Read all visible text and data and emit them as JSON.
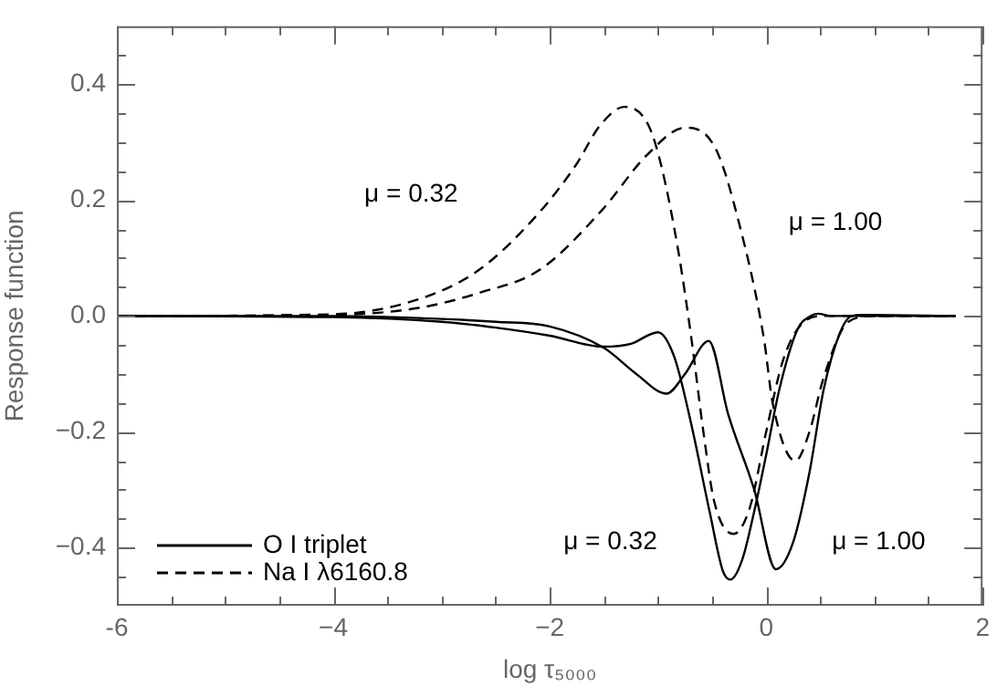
{
  "chart_data": {
    "type": "line",
    "xlabel": "log τ₅₀₀₀",
    "ylabel": "Response function",
    "xlim": [
      -6,
      2
    ],
    "ylim": [
      -0.5,
      0.5
    ],
    "xticks": [
      -6,
      {
        "value": -5.5,
        "label": null
      },
      {
        "value": -5,
        "label": null
      },
      {
        "value": -4.5,
        "label": null
      },
      {
        "value": -4,
        "label": "−4"
      },
      {
        "value": -3.5,
        "label": null
      },
      {
        "value": -3,
        "label": null
      },
      {
        "value": -2.5,
        "label": null
      },
      {
        "value": -2,
        "label": "−2"
      },
      {
        "value": -1.5,
        "label": null
      },
      {
        "value": -1,
        "label": null
      },
      {
        "value": -0.5,
        "label": null
      },
      0,
      {
        "value": 0.5,
        "label": null
      },
      {
        "value": 1,
        "label": null
      },
      {
        "value": 1.5,
        "label": null
      },
      2
    ],
    "yticks": [
      {
        "value": -0.45,
        "label": null
      },
      {
        "value": -0.4,
        "label": "−0.4"
      },
      {
        "value": -0.35,
        "label": null
      },
      {
        "value": -0.3,
        "label": null
      },
      {
        "value": -0.25,
        "label": null
      },
      {
        "value": -0.2,
        "label": "−0.2"
      },
      {
        "value": -0.15,
        "label": null
      },
      {
        "value": -0.1,
        "label": null
      },
      {
        "value": -0.05,
        "label": null
      },
      {
        "value": 0,
        "label": "0.0"
      },
      {
        "value": 0.05,
        "label": null
      },
      {
        "value": 0.1,
        "label": null
      },
      {
        "value": 0.15,
        "label": null
      },
      {
        "value": 0.2,
        "label": "0.2"
      },
      {
        "value": 0.25,
        "label": null
      },
      {
        "value": 0.3,
        "label": null
      },
      {
        "value": 0.35,
        "label": null
      },
      {
        "value": 0.4,
        "label": "0.4"
      },
      {
        "value": 0.45,
        "label": null
      }
    ],
    "grid": false,
    "legend": "bottom left",
    "marker": "none",
    "series": [
      {
        "name": "O I triplet",
        "color": "#000000",
        "line_style": "solid",
        "x": [
          -6,
          -4,
          -3,
          -2.5,
          -2,
          -1.5,
          -1.25,
          -1.0,
          -0.85,
          -0.7,
          -0.52,
          -0.4,
          -0.33,
          -0.22,
          -0.11,
          0,
          0.12,
          0.29,
          0.41,
          0.48,
          0.6,
          1.75
        ],
        "values": [
          0,
          -0.002,
          -0.01,
          -0.02,
          -0.034,
          -0.053,
          -0.048,
          -0.028,
          -0.07,
          -0.18,
          -0.34,
          -0.44,
          -0.455,
          -0.42,
          -0.337,
          -0.24,
          -0.128,
          -0.023,
          0,
          0.004,
          0,
          0
        ]
      },
      {
        "color": "#000000",
        "line_style": "solid",
        "x": [
          -6,
          -4,
          -3,
          -2.5,
          -2,
          -1.5,
          -1.2,
          -0.92,
          -0.75,
          -0.53,
          -0.35,
          -0.11,
          0.09,
          0.25,
          0.4,
          0.53,
          0.68,
          0.79,
          0.9,
          1.75
        ],
        "values": [
          0,
          0,
          -0.005,
          -0.01,
          -0.018,
          -0.055,
          -0.1,
          -0.134,
          -0.1,
          -0.043,
          -0.17,
          -0.3,
          -0.437,
          -0.39,
          -0.27,
          -0.128,
          -0.03,
          0,
          0.002,
          0
        ]
      },
      {
        "name": "Na I λ6160.8",
        "color": "#000000",
        "line_style": "dashed",
        "x": [
          -6,
          -4,
          -3.21,
          -2.65,
          -2.09,
          -1.76,
          -1.53,
          -1.31,
          -1.09,
          -0.97,
          -0.81,
          -0.69,
          -0.58,
          -0.48,
          -0.3,
          -0.15,
          0,
          0.15,
          0.3,
          0.5,
          0.7,
          1.75
        ],
        "values": [
          0,
          0.003,
          0.029,
          0.08,
          0.18,
          0.26,
          0.33,
          0.361,
          0.33,
          0.26,
          0.11,
          -0.04,
          -0.2,
          -0.32,
          -0.376,
          -0.33,
          -0.2,
          -0.08,
          -0.02,
          0,
          0,
          0
        ]
      },
      {
        "color": "#000000",
        "line_style": "dashed",
        "x": [
          -6,
          -4,
          -3.21,
          -2.65,
          -2.09,
          -1.53,
          -1.09,
          -0.75,
          -0.47,
          -0.25,
          -0.02,
          0.06,
          0.27,
          0.4,
          0.53,
          0.76,
          1.0,
          1.75
        ],
        "values": [
          0,
          0.002,
          0.014,
          0.04,
          0.08,
          0.18,
          0.28,
          0.325,
          0.29,
          0.16,
          -0.04,
          -0.15,
          -0.25,
          -0.2,
          -0.107,
          -0.01,
          0,
          0
        ]
      }
    ],
    "annotations": [
      "μ = 0.32",
      "μ = 1.00",
      "μ = 0.32",
      "μ = 1.00"
    ]
  }
}
